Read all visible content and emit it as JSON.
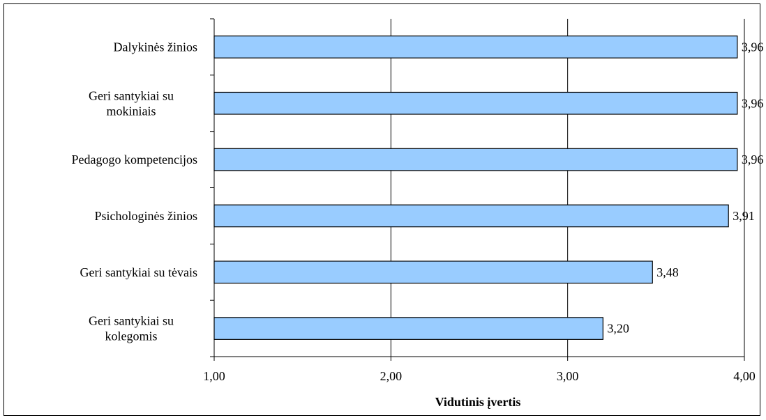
{
  "chart_data": {
    "type": "bar",
    "orientation": "horizontal",
    "categories": [
      [
        "Dalykinės žinios"
      ],
      [
        "Geri santykiai su",
        "mokiniais"
      ],
      [
        "Pedagogo kompetencijos"
      ],
      [
        "Psichologinės žinios"
      ],
      [
        "Geri santykiai su tėvais"
      ],
      [
        "Geri santykiai su",
        "kolegomis"
      ]
    ],
    "values": [
      3.96,
      3.96,
      3.96,
      3.91,
      3.48,
      3.2
    ],
    "value_labels": [
      "3,96",
      "3,96",
      "3,96",
      "3,91",
      "3,48",
      "3,20"
    ],
    "xlim": [
      1.0,
      4.0
    ],
    "x_ticks": [
      1.0,
      2.0,
      3.0,
      4.0
    ],
    "x_tick_labels": [
      "1,00",
      "2,00",
      "3,00",
      "4,00"
    ],
    "xlabel": "Vidutinis įvertis",
    "title": "",
    "grid": "vertical",
    "legend": "none",
    "bar_color": "#99ccff",
    "bar_border_color": "#000000"
  }
}
